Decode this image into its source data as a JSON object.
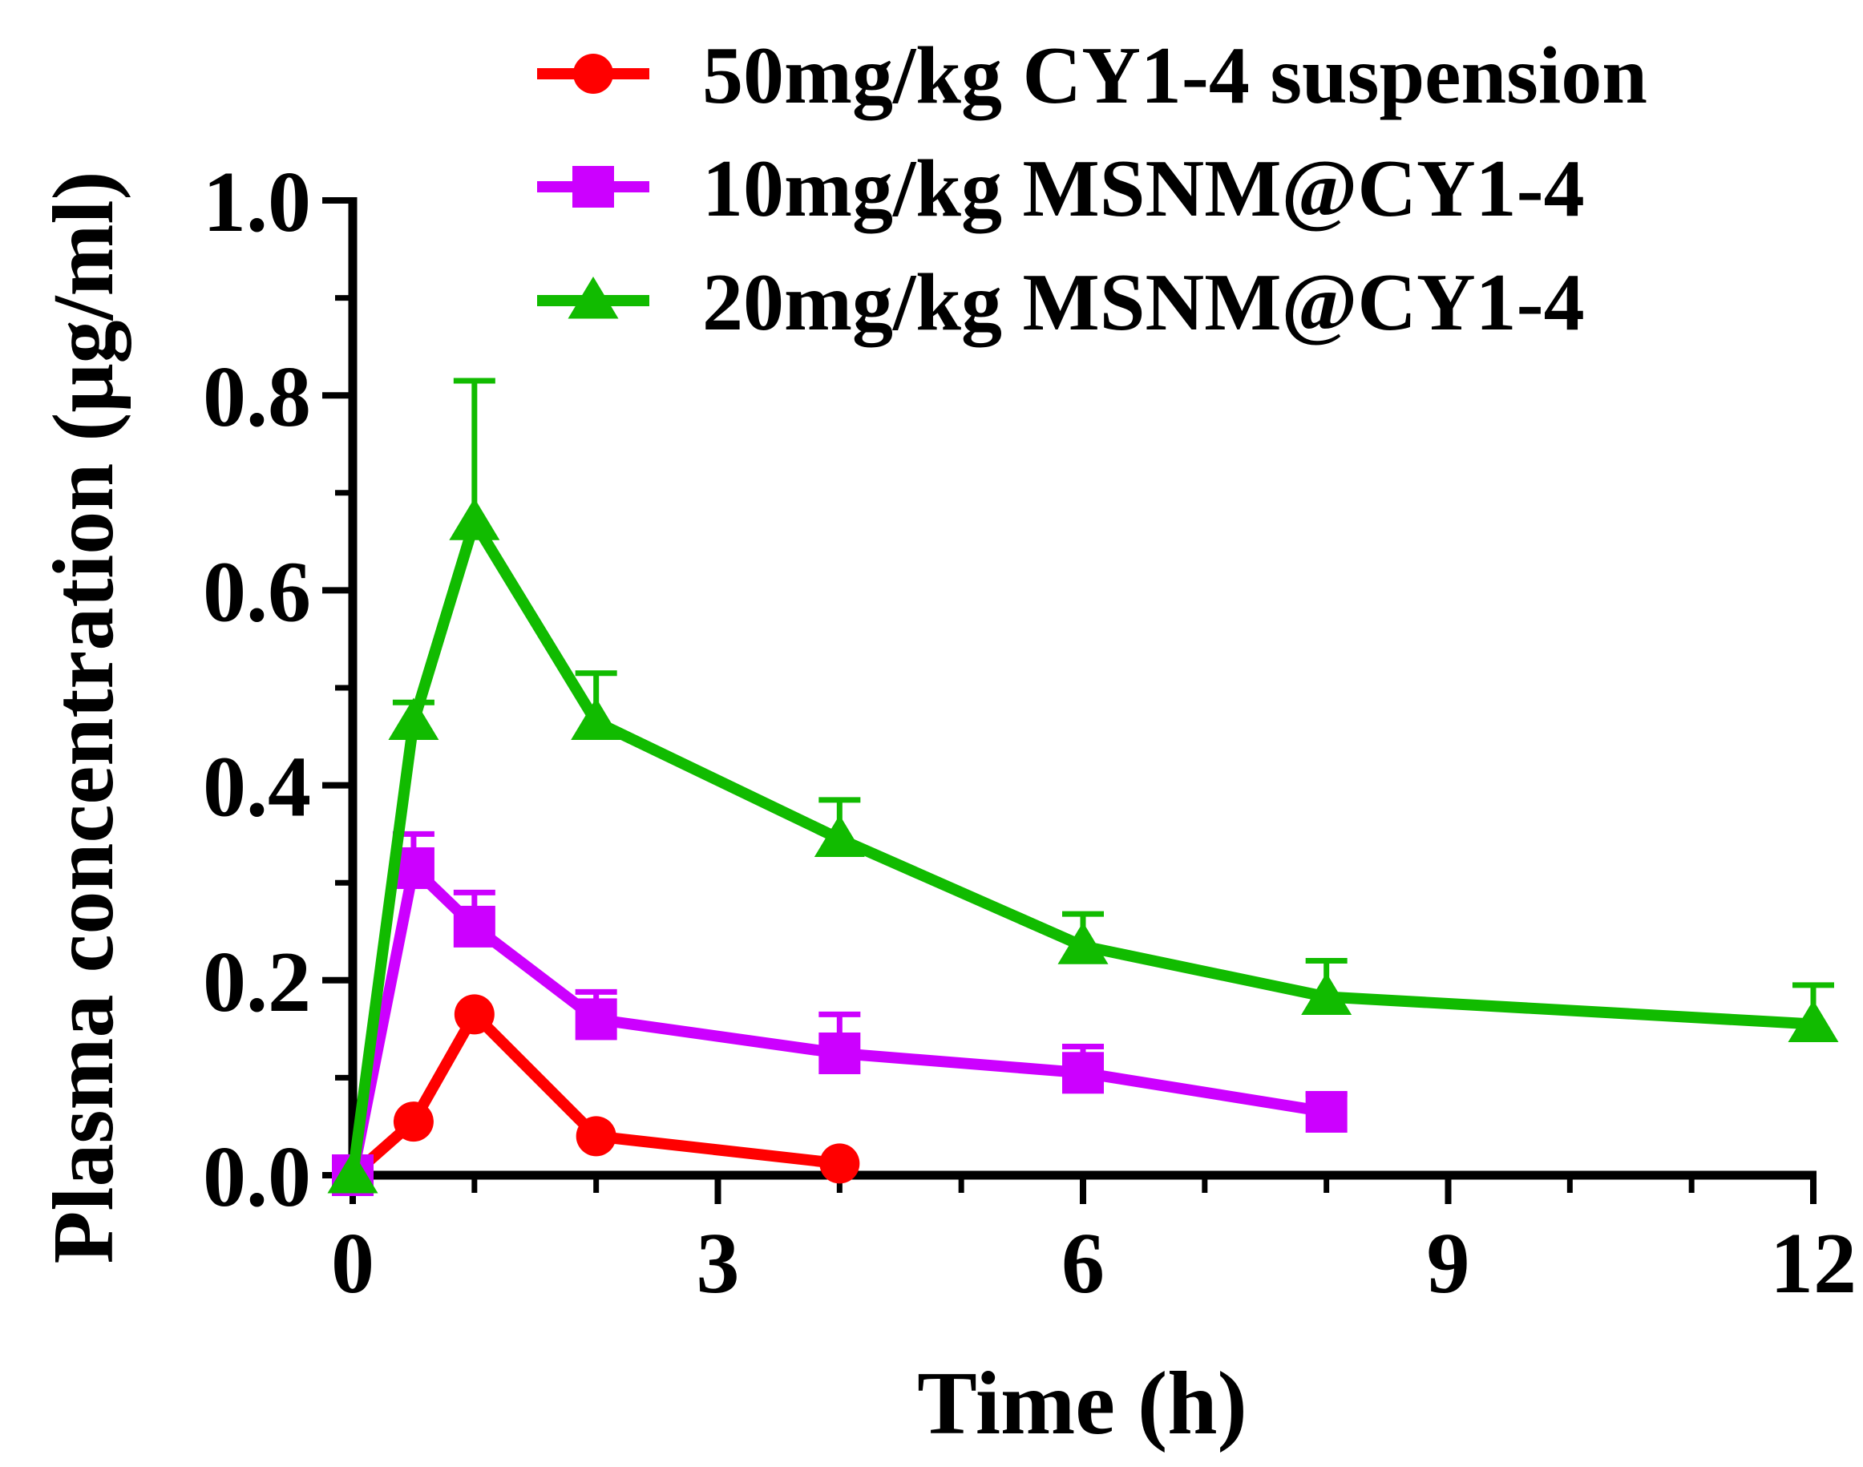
{
  "chart_data": {
    "type": "line",
    "title": "",
    "xlabel": "Time (h)",
    "ylabel": "Plasma concentration (μg/ml)",
    "xlim": [
      0,
      12
    ],
    "ylim": [
      0,
      1.0
    ],
    "x_ticks": [
      0,
      3,
      6,
      9,
      12
    ],
    "x_tick_labels": [
      "0",
      "3",
      "6",
      "9",
      "12"
    ],
    "x_minor_step": 1,
    "y_ticks": [
      0.0,
      0.2,
      0.4,
      0.6,
      0.8,
      1.0
    ],
    "y_tick_labels": [
      "0.0",
      "0.2",
      "0.4",
      "0.6",
      "0.8",
      "1.0"
    ],
    "y_minor_step": 0.1,
    "grid": false,
    "legend_position": "top",
    "series": [
      {
        "name": "50mg/kg CY1-4 suspension",
        "color": "#ff0000",
        "marker": "circle",
        "x": [
          0,
          0.5,
          1,
          2,
          4
        ],
        "y": [
          0.0,
          0.055,
          0.165,
          0.04,
          0.012
        ],
        "error": [
          0,
          0,
          0,
          0,
          0
        ]
      },
      {
        "name": "10mg/kg MSNM@CY1-4",
        "color": "#cc00ff",
        "marker": "square",
        "x": [
          0,
          0.5,
          1,
          2,
          4,
          6,
          8
        ],
        "y": [
          0.0,
          0.315,
          0.255,
          0.16,
          0.125,
          0.105,
          0.065
        ],
        "error": [
          0,
          0.035,
          0.035,
          0.028,
          0.04,
          0.027,
          0.018
        ]
      },
      {
        "name": "20mg/kg MSNM@CY1-4",
        "color": "#11bb00",
        "marker": "triangle",
        "x": [
          0,
          0.5,
          1,
          2,
          4,
          6,
          8,
          12
        ],
        "y": [
          0.0,
          0.465,
          0.67,
          0.465,
          0.345,
          0.235,
          0.183,
          0.155
        ],
        "error": [
          0,
          0.02,
          0.145,
          0.05,
          0.04,
          0.033,
          0.037,
          0.04
        ]
      }
    ]
  }
}
